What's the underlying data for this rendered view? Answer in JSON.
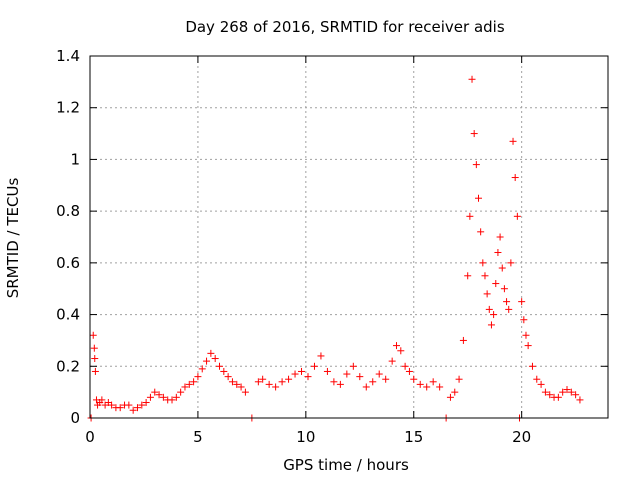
{
  "chart_data": {
    "type": "scatter",
    "title": "Day 268 of 2016, SRMTID for receiver adis",
    "xlabel": "GPS time / hours",
    "ylabel": "SRMTID / TECUs",
    "xlim": [
      0,
      24
    ],
    "ylim": [
      0,
      1.4
    ],
    "xticks": [
      0,
      5,
      10,
      15,
      20
    ],
    "xtick_labels": [
      "0",
      "5",
      "10",
      "15",
      "20"
    ],
    "yticks": [
      0,
      0.2,
      0.4,
      0.6,
      0.8,
      1,
      1.2,
      1.4
    ],
    "ytick_labels": [
      "0",
      "0.2",
      "0.4",
      "0.6",
      "0.8",
      "1",
      "1.2",
      "1.4"
    ],
    "grid": true,
    "marker": "+",
    "series": [
      {
        "name": "SRMTID",
        "color": "#ff0000",
        "x": [
          0.05,
          0.15,
          0.2,
          0.22,
          0.25,
          0.3,
          0.35,
          0.45,
          0.55,
          0.7,
          0.85,
          1.0,
          1.2,
          1.4,
          1.6,
          1.8,
          2.0,
          2.2,
          2.4,
          2.6,
          2.8,
          3.0,
          3.2,
          3.4,
          3.6,
          3.8,
          4.0,
          4.2,
          4.4,
          4.6,
          4.8,
          5.0,
          5.2,
          5.4,
          5.6,
          5.8,
          6.0,
          6.2,
          6.4,
          6.6,
          6.8,
          7.0,
          7.2,
          7.5,
          7.8,
          8.0,
          8.3,
          8.6,
          8.9,
          9.2,
          9.5,
          9.8,
          10.1,
          10.4,
          10.7,
          11.0,
          11.3,
          11.6,
          11.9,
          12.2,
          12.5,
          12.8,
          13.1,
          13.4,
          13.7,
          14.0,
          14.2,
          14.4,
          14.6,
          14.8,
          15.0,
          15.3,
          15.6,
          15.9,
          16.2,
          16.5,
          16.7,
          16.9,
          17.1,
          17.3,
          17.5,
          17.6,
          17.7,
          17.8,
          17.9,
          18.0,
          18.1,
          18.2,
          18.3,
          18.4,
          18.5,
          18.6,
          18.7,
          18.8,
          18.9,
          19.0,
          19.1,
          19.2,
          19.3,
          19.4,
          19.5,
          19.6,
          19.7,
          19.8,
          19.9,
          20.0,
          20.1,
          20.2,
          20.3,
          20.5,
          20.7,
          20.9,
          21.1,
          21.3,
          21.5,
          21.7,
          21.9,
          22.1,
          22.3,
          22.5,
          22.7
        ],
        "y": [
          0.0,
          0.32,
          0.27,
          0.23,
          0.18,
          0.07,
          0.05,
          0.06,
          0.07,
          0.05,
          0.06,
          0.05,
          0.04,
          0.04,
          0.05,
          0.05,
          0.03,
          0.04,
          0.05,
          0.06,
          0.08,
          0.1,
          0.09,
          0.08,
          0.07,
          0.07,
          0.08,
          0.1,
          0.12,
          0.13,
          0.14,
          0.16,
          0.19,
          0.22,
          0.25,
          0.23,
          0.2,
          0.18,
          0.16,
          0.14,
          0.13,
          0.12,
          0.1,
          0.0,
          0.14,
          0.15,
          0.13,
          0.12,
          0.14,
          0.15,
          0.17,
          0.18,
          0.16,
          0.2,
          0.24,
          0.18,
          0.14,
          0.13,
          0.17,
          0.2,
          0.16,
          0.12,
          0.14,
          0.17,
          0.15,
          0.22,
          0.28,
          0.26,
          0.2,
          0.18,
          0.15,
          0.13,
          0.12,
          0.14,
          0.12,
          0.0,
          0.08,
          0.1,
          0.15,
          0.3,
          0.55,
          0.78,
          1.31,
          1.1,
          0.98,
          0.85,
          0.72,
          0.6,
          0.55,
          0.48,
          0.42,
          0.36,
          0.4,
          0.52,
          0.64,
          0.7,
          0.58,
          0.5,
          0.45,
          0.42,
          0.6,
          1.07,
          0.93,
          0.78,
          0.0,
          0.45,
          0.38,
          0.32,
          0.28,
          0.2,
          0.15,
          0.13,
          0.1,
          0.09,
          0.08,
          0.08,
          0.1,
          0.11,
          0.1,
          0.09,
          0.07
        ]
      }
    ]
  }
}
